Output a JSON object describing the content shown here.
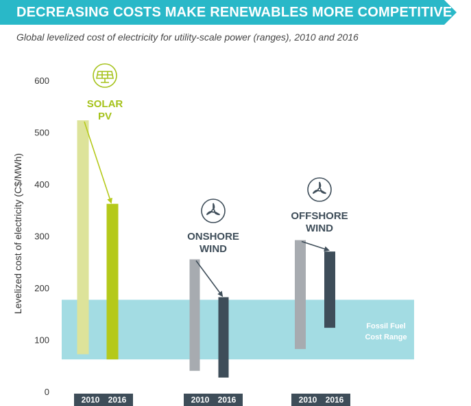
{
  "header": {
    "title": "DECREASING COSTS MAKE RENEWABLES MORE COMPETITIVE",
    "subtitle": "Global levelized cost of electricity for utility-scale power (ranges), 2010 and 2016"
  },
  "colors": {
    "banner": "#29b8c8",
    "solar_2010": "#dde39a",
    "solar_2016": "#b5c91a",
    "wind_2010": "#a7abb0",
    "wind_2016": "#3e4d59",
    "fossil_band": "#a3dce3",
    "year_box": "#3e4d59",
    "solar_label": "#a5c21a",
    "wind_label": "#3e4d59"
  },
  "chart_data": {
    "type": "range-bar",
    "title": "DECREASING COSTS MAKE RENEWABLES MORE COMPETITIVE",
    "subtitle": "Global levelized cost of electricity for utility-scale power (ranges), 2010 and 2016",
    "ylabel": "Levelized cost of electricity (C$/MWh)",
    "ylim": [
      0,
      600
    ],
    "yticks": [
      0,
      100,
      200,
      300,
      400,
      500,
      600
    ],
    "grid": false,
    "band": {
      "label_line1": "Fossil Fuel",
      "label_line2": "Cost Range",
      "low": 62,
      "high": 177
    },
    "groups": [
      {
        "name_line1": "SOLAR",
        "name_line2": "PV",
        "icon": "solar-panel-icon",
        "bars": [
          {
            "year": "2010",
            "low": 72,
            "high": 523
          },
          {
            "year": "2016",
            "low": 62,
            "high": 362
          }
        ]
      },
      {
        "name_line1": "ONSHORE",
        "name_line2": "WIND",
        "icon": "wind-turbine-icon",
        "bars": [
          {
            "year": "2010",
            "low": 40,
            "high": 255
          },
          {
            "year": "2016",
            "low": 27,
            "high": 182
          }
        ]
      },
      {
        "name_line1": "OFFSHORE",
        "name_line2": "WIND",
        "icon": "wind-turbine-icon",
        "bars": [
          {
            "year": "2010",
            "low": 82,
            "high": 292
          },
          {
            "year": "2016",
            "low": 123,
            "high": 270
          }
        ]
      }
    ]
  }
}
